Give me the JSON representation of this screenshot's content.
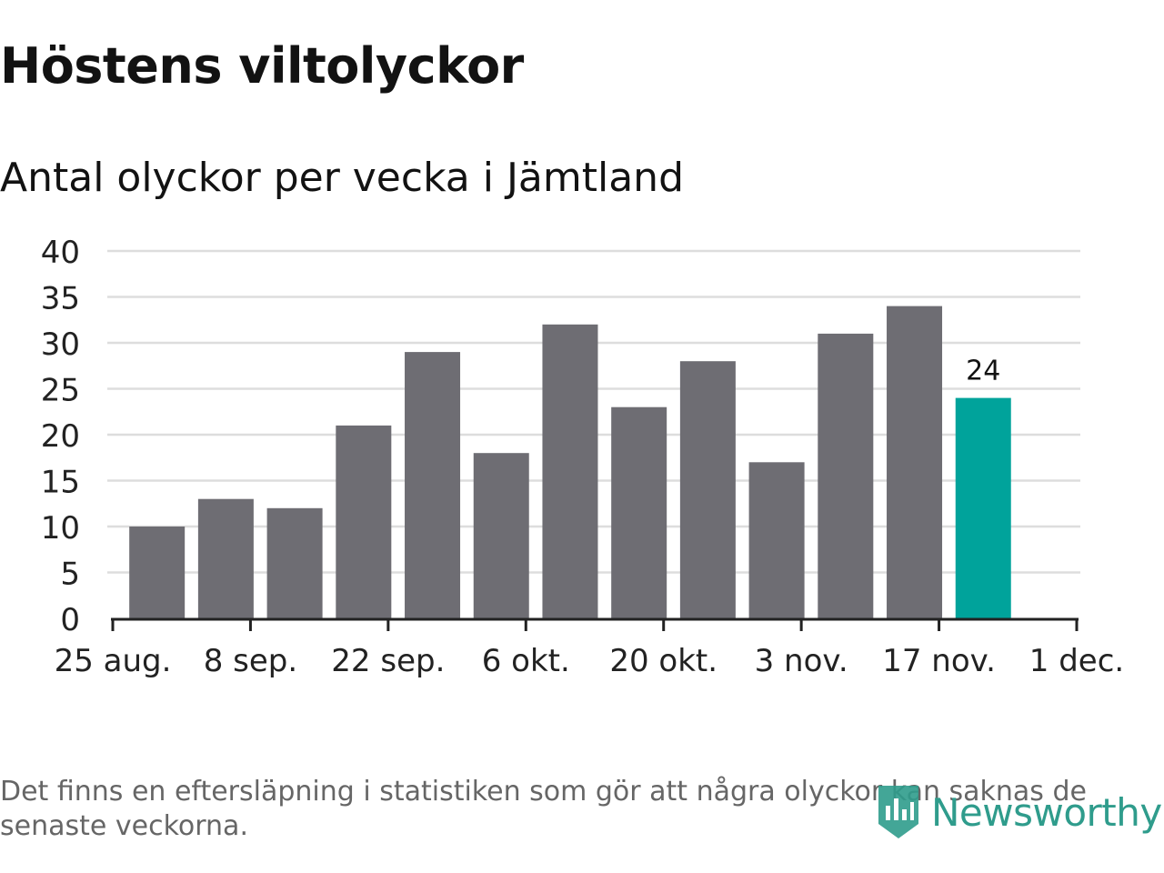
{
  "title": "Höstens viltolyckor",
  "subtitle": "Antal olyckor per vecka i Jämtland",
  "footnote": "Det finns en eftersläpning i statistiken som gör att några olyckor kan saknas de senaste veckorna.",
  "logo": {
    "text": "Newsworthy",
    "icon": "newsworthy-logo-icon",
    "color": "#2f9c8c"
  },
  "colors": {
    "bar": "#6e6d73",
    "highlight": "#00a39b",
    "grid": "#dddddd",
    "axis": "#222222",
    "text": "#121212"
  },
  "chart_data": {
    "type": "bar",
    "x": [
      "2024-08-26",
      "2024-09-02",
      "2024-09-09",
      "2024-09-16",
      "2024-09-23",
      "2024-09-30",
      "2024-10-07",
      "2024-10-14",
      "2024-10-21",
      "2024-10-28",
      "2024-11-04",
      "2024-11-11",
      "2024-11-18"
    ],
    "values": [
      10,
      13,
      12,
      21,
      29,
      18,
      32,
      23,
      28,
      17,
      31,
      34,
      24
    ],
    "highlight_index": 12,
    "data_labels": [
      {
        "index": 12,
        "text": "24"
      }
    ],
    "ylim": [
      0,
      40
    ],
    "yticks": [
      0,
      5,
      10,
      15,
      20,
      25,
      30,
      35,
      40
    ],
    "xlim": [
      "2024-08-25",
      "2024-12-01"
    ],
    "xticks": [
      {
        "date": "2024-08-25",
        "label": "25 aug."
      },
      {
        "date": "2024-09-08",
        "label": "8 sep."
      },
      {
        "date": "2024-09-22",
        "label": "22 sep."
      },
      {
        "date": "2024-10-06",
        "label": "6 okt."
      },
      {
        "date": "2024-10-20",
        "label": "20 okt."
      },
      {
        "date": "2024-11-03",
        "label": "3 nov."
      },
      {
        "date": "2024-11-17",
        "label": "17 nov."
      },
      {
        "date": "2024-12-01",
        "label": "1 dec."
      }
    ],
    "grid": true,
    "title": "Höstens viltolyckor",
    "subtitle": "Antal olyckor per vecka i Jämtland",
    "xlabel": "",
    "ylabel": ""
  }
}
